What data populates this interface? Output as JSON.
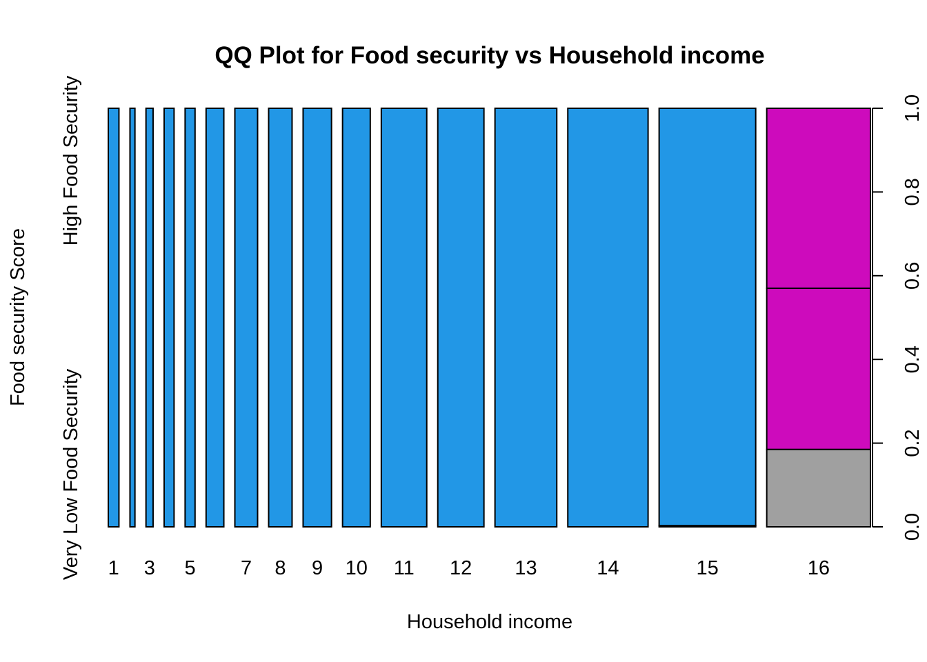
{
  "chart_data": {
    "type": "bar",
    "subtype": "spineplot",
    "title": "QQ Plot for Food security vs Household income",
    "xlabel": "Household income",
    "ylabel": "Food security Score",
    "categories": [
      "1",
      "2",
      "3",
      "4",
      "5",
      "6",
      "7",
      "8",
      "9",
      "10",
      "11",
      "12",
      "13",
      "14",
      "15",
      "16"
    ],
    "x_tick_labels_shown": [
      "1",
      "3",
      "5",
      "7",
      "8",
      "9",
      "10",
      "11",
      "12",
      "13",
      "14",
      "15",
      "16"
    ],
    "y_categories": [
      "Very Low Food Security",
      "",
      "High Food Security"
    ],
    "right_axis": {
      "ticks": [
        "0.0",
        "0.2",
        "0.4",
        "0.6",
        "0.8",
        "1.0"
      ],
      "ylim": [
        0,
        1
      ]
    },
    "width_weights": [
      0.015,
      0.007,
      0.01,
      0.014,
      0.014,
      0.025,
      0.032,
      0.033,
      0.04,
      0.039,
      0.064,
      0.065,
      0.087,
      0.113,
      0.136,
      0.146
    ],
    "series": [
      {
        "name": "Very Low Food Security",
        "color": "#A0A0A0",
        "values": [
          0,
          0,
          0,
          0,
          0,
          0,
          0,
          0,
          0,
          0,
          0,
          0,
          0,
          0,
          0.003,
          0.185
        ]
      },
      {
        "name": "",
        "color": "#CD0BBC",
        "values": [
          0,
          0,
          0,
          0,
          0,
          0,
          0,
          0,
          0,
          0,
          0,
          0,
          0,
          0,
          0,
          0.385
        ]
      },
      {
        "name": "",
        "color": "#CD0BBC",
        "values": [
          0,
          0,
          0,
          0,
          0,
          0,
          0,
          0,
          0,
          0,
          0,
          0,
          0,
          0,
          0,
          0.43
        ]
      },
      {
        "name": "High Food Security",
        "color": "#2297E6",
        "values": [
          1,
          1,
          1,
          1,
          1,
          1,
          1,
          1,
          1,
          1,
          1,
          1,
          1,
          1,
          0.997,
          0
        ]
      }
    ]
  }
}
